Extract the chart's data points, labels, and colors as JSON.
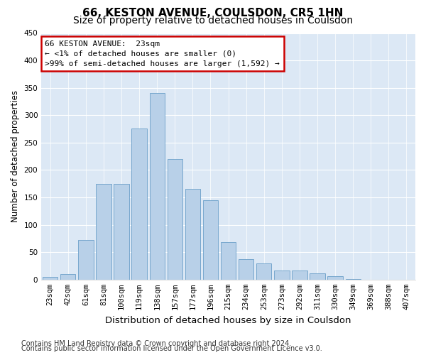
{
  "title1": "66, KESTON AVENUE, COULSDON, CR5 1HN",
  "title2": "Size of property relative to detached houses in Coulsdon",
  "xlabel": "Distribution of detached houses by size in Coulsdon",
  "ylabel": "Number of detached properties",
  "categories": [
    "23sqm",
    "42sqm",
    "61sqm",
    "81sqm",
    "100sqm",
    "119sqm",
    "138sqm",
    "157sqm",
    "177sqm",
    "196sqm",
    "215sqm",
    "234sqm",
    "253sqm",
    "273sqm",
    "292sqm",
    "311sqm",
    "330sqm",
    "349sqm",
    "369sqm",
    "388sqm",
    "407sqm"
  ],
  "values": [
    5,
    10,
    72,
    175,
    175,
    276,
    340,
    220,
    165,
    145,
    68,
    37,
    30,
    16,
    16,
    12,
    6,
    1,
    0,
    0,
    0
  ],
  "bar_color": "#b8d0e8",
  "bar_edge_color": "#6a9fc8",
  "highlight_bar_color": "#cc0000",
  "ylim": [
    0,
    450
  ],
  "yticks": [
    0,
    50,
    100,
    150,
    200,
    250,
    300,
    350,
    400,
    450
  ],
  "annotation_title": "66 KESTON AVENUE:  23sqm",
  "annotation_line1": "← <1% of detached houses are smaller (0)",
  "annotation_line2": ">99% of semi-detached houses are larger (1,592) →",
  "annotation_box_facecolor": "#ffffff",
  "annotation_box_edgecolor": "#cc0000",
  "footer1": "Contains HM Land Registry data © Crown copyright and database right 2024.",
  "footer2": "Contains public sector information licensed under the Open Government Licence v3.0.",
  "bg_color": "#dce8f5",
  "fig_bg_color": "#ffffff",
  "title1_fontsize": 11,
  "title2_fontsize": 10,
  "xlabel_fontsize": 9.5,
  "ylabel_fontsize": 8.5,
  "tick_fontsize": 7.5,
  "annotation_fontsize": 8,
  "footer_fontsize": 7
}
